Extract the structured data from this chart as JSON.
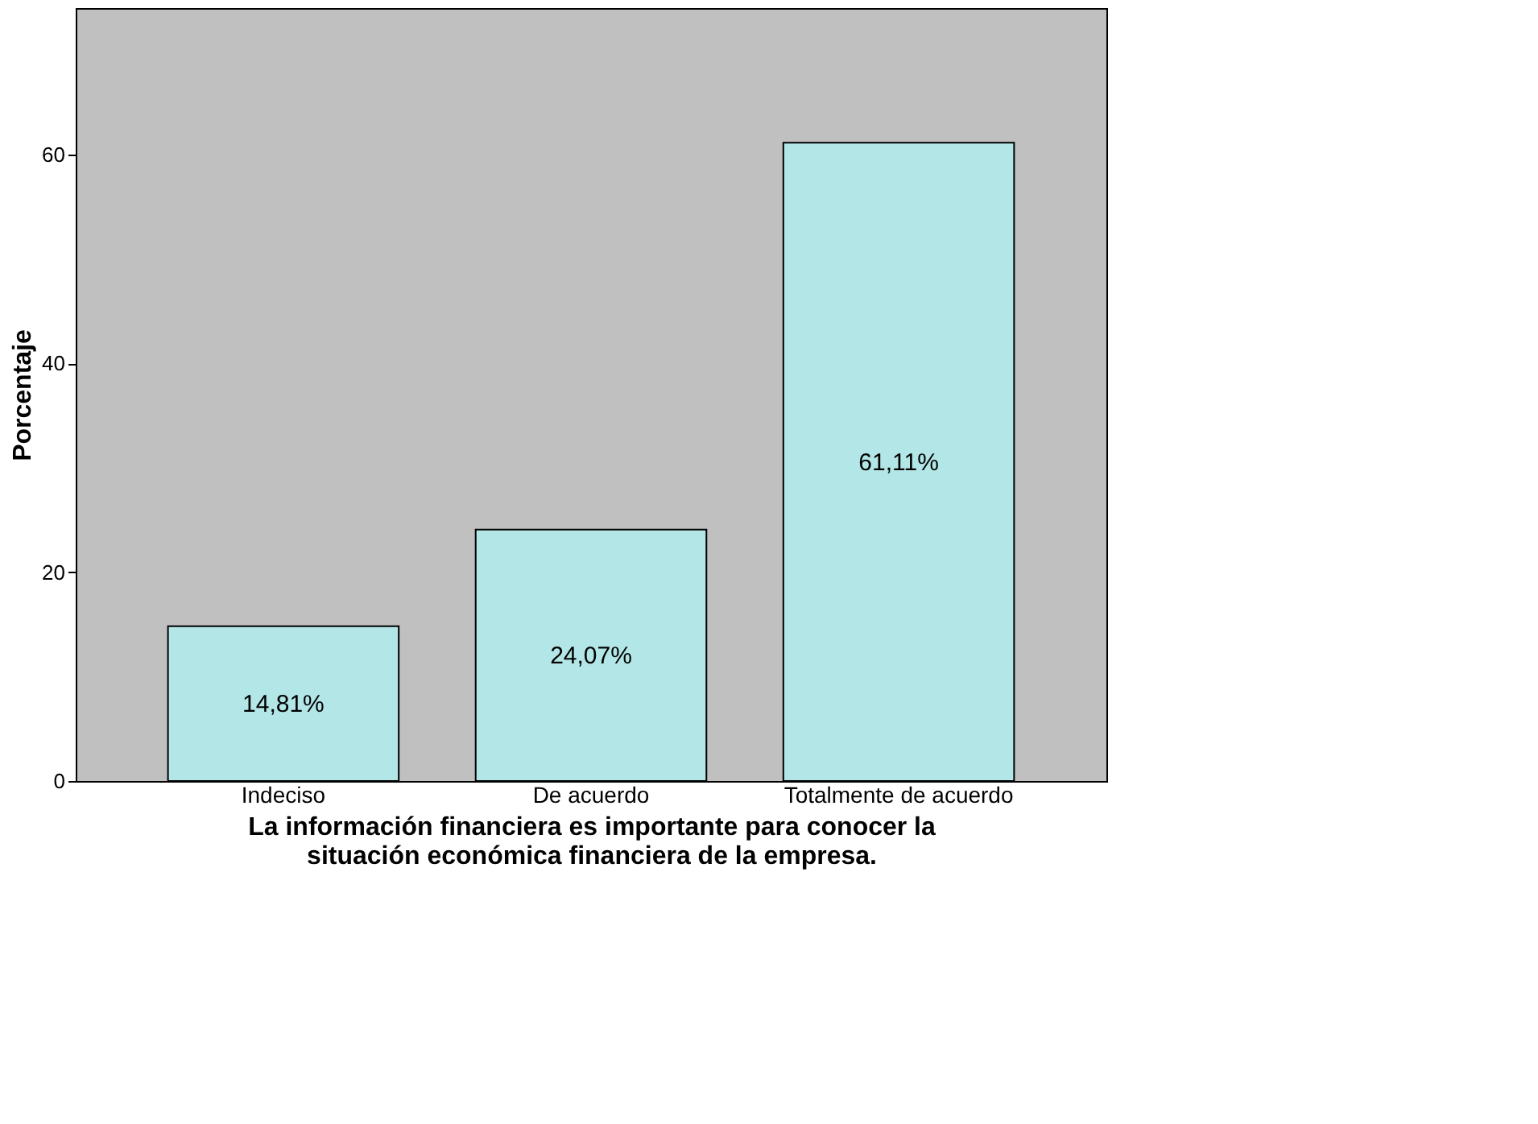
{
  "chart_data": {
    "type": "bar",
    "xlabel": "La información financiera es importante para conocer la situación económica financiera de la empresa.",
    "ylabel": "Porcentaje",
    "categories": [
      "Indeciso",
      "De acuerdo",
      "Totalmente de acuerdo"
    ],
    "values": [
      14.81,
      24.07,
      61.11
    ],
    "color": "#b3e6e6",
    "value_labels": [
      "14,81%",
      "24,07%",
      "61,11%"
    ],
    "ylim": [
      0,
      74
    ],
    "yticks": [
      0,
      20,
      40,
      60
    ],
    "grid": false
  }
}
